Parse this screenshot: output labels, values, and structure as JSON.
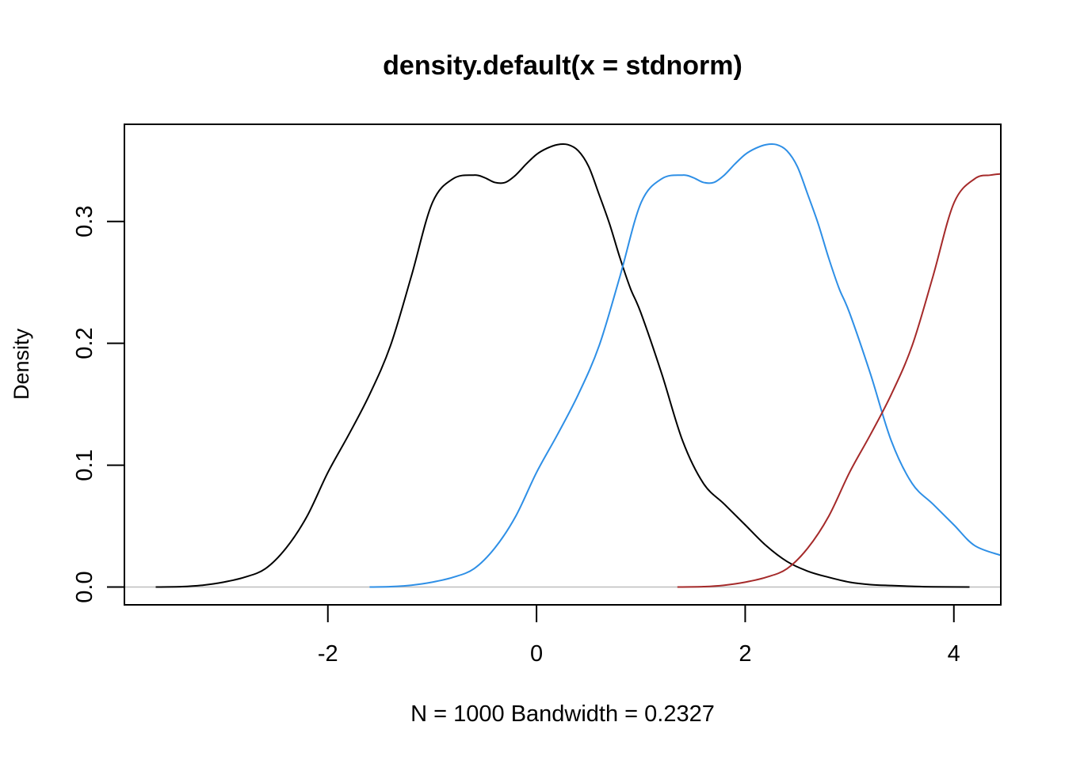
{
  "chart_data": {
    "type": "line",
    "title": "density.default(x = stdnorm)",
    "xlabel": "N = 1000   Bandwidth = 0.2327",
    "ylabel": "Density",
    "xlim": [
      -3.95,
      4.45
    ],
    "ylim": [
      -0.0146,
      0.3797
    ],
    "x_ticks": [
      -2,
      0,
      2,
      4
    ],
    "x_tick_labels": [
      "-2",
      "0",
      "2",
      "4"
    ],
    "y_ticks": [
      0.0,
      0.1,
      0.2,
      0.3
    ],
    "y_tick_labels": [
      "0.0",
      "0.1",
      "0.2",
      "0.3"
    ],
    "grid": false,
    "baseline_y": 0,
    "baseline_color": "#bebebe",
    "series": [
      {
        "color": "#000000",
        "x": [
          -3.65,
          -3.4,
          -3.2,
          -3.0,
          -2.8,
          -2.6,
          -2.4,
          -2.2,
          -2.0,
          -1.8,
          -1.6,
          -1.4,
          -1.2,
          -1.0,
          -0.8,
          -0.6,
          -0.5,
          -0.4,
          -0.3,
          -0.2,
          -0.1,
          0.0,
          0.1,
          0.2,
          0.3,
          0.4,
          0.5,
          0.6,
          0.7,
          0.8,
          0.9,
          1.0,
          1.2,
          1.4,
          1.6,
          1.8,
          2.0,
          2.2,
          2.4,
          2.6,
          2.8,
          3.0,
          3.2,
          3.4,
          3.6,
          3.8,
          4.15
        ],
        "y": [
          0.0,
          0.0003,
          0.0015,
          0.004,
          0.008,
          0.015,
          0.032,
          0.058,
          0.094,
          0.125,
          0.158,
          0.198,
          0.255,
          0.315,
          0.335,
          0.338,
          0.336,
          0.332,
          0.332,
          0.338,
          0.347,
          0.355,
          0.36,
          0.363,
          0.363,
          0.358,
          0.345,
          0.322,
          0.298,
          0.27,
          0.245,
          0.225,
          0.175,
          0.12,
          0.085,
          0.068,
          0.051,
          0.034,
          0.021,
          0.013,
          0.008,
          0.004,
          0.002,
          0.0012,
          0.0006,
          0.0002,
          0.0
        ]
      },
      {
        "color": "#2e8fe6",
        "x": [
          -1.6,
          -1.4,
          -1.2,
          -1.0,
          -0.8,
          -0.6,
          -0.4,
          -0.2,
          0.0,
          0.2,
          0.4,
          0.6,
          0.8,
          1.0,
          1.2,
          1.4,
          1.5,
          1.6,
          1.7,
          1.8,
          1.9,
          2.0,
          2.1,
          2.2,
          2.3,
          2.4,
          2.5,
          2.6,
          2.7,
          2.8,
          2.9,
          3.0,
          3.2,
          3.4,
          3.6,
          3.8,
          4.0,
          4.2,
          4.45
        ],
        "y": [
          0.0,
          0.0003,
          0.0015,
          0.004,
          0.008,
          0.015,
          0.032,
          0.058,
          0.094,
          0.125,
          0.158,
          0.198,
          0.255,
          0.315,
          0.335,
          0.338,
          0.336,
          0.332,
          0.332,
          0.338,
          0.347,
          0.355,
          0.36,
          0.363,
          0.363,
          0.358,
          0.345,
          0.322,
          0.298,
          0.27,
          0.245,
          0.225,
          0.175,
          0.12,
          0.085,
          0.068,
          0.051,
          0.034,
          0.026
        ]
      },
      {
        "color": "#a52a2a",
        "x": [
          1.35,
          1.6,
          1.8,
          2.0,
          2.2,
          2.4,
          2.6,
          2.8,
          3.0,
          3.2,
          3.4,
          3.6,
          3.8,
          4.0,
          4.2,
          4.35,
          4.45
        ],
        "y": [
          0.0,
          0.0003,
          0.0015,
          0.004,
          0.008,
          0.015,
          0.032,
          0.058,
          0.094,
          0.125,
          0.158,
          0.198,
          0.255,
          0.315,
          0.335,
          0.338,
          0.339
        ]
      }
    ]
  }
}
